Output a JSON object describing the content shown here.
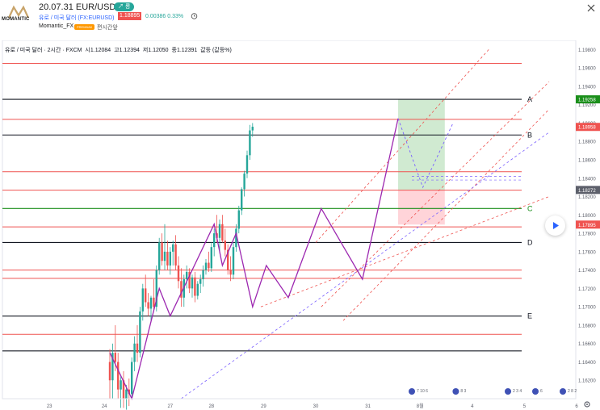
{
  "header": {
    "logo_text": "MOMANTIC",
    "post_title": "20.07.31 EUR/USD",
    "post_badge": "↗ 롱",
    "symbol_name": "유로 / 미국 달러 (FX:EURUSD)",
    "last_price": "1.18895",
    "price_change": "0.00386",
    "price_change_pct": "0.33%",
    "author": "Momantic_FX",
    "author_badge": "PREMIUM",
    "publish_label": "편시간앞"
  },
  "legend": {
    "symbol": "유로 / 미국 달러 · 2시간 · FXCM",
    "open": "시1.12084",
    "high": "고1.12394",
    "low": "저1.12050",
    "close": "종1.12391",
    "change": "값등 (값등%)"
  },
  "colors": {
    "up": "#26a69a",
    "down": "#ef5350",
    "pattern": "#9c27b0",
    "projection": "#7b61ff",
    "resistance": "#ef5350",
    "level": "#131722",
    "long_target_zone": "#c8e6c9",
    "stop_zone": "#ffcdd2",
    "label_green": "#1b8f1b"
  },
  "icons": {
    "alert": "alert-clock-icon",
    "close": "close-icon",
    "play": "play-icon",
    "settings": "gear-icon"
  },
  "chart_data": {
    "type": "candlestick",
    "timeframe": "2h",
    "ylim": [
      1.16,
      1.199
    ],
    "y_ticks": [
      "1.19800",
      "1.19600",
      "1.19400",
      "1.19200",
      "1.19000",
      "1.18800",
      "1.18600",
      "1.18400",
      "1.18200",
      "1.18000",
      "1.17800",
      "1.17600",
      "1.17400",
      "1.17200",
      "1.17000",
      "1.16800",
      "1.16600",
      "1.16400",
      "1.16200"
    ],
    "x_ticks": [
      {
        "label": "23",
        "slot": 18
      },
      {
        "label": "24",
        "slot": 38
      },
      {
        "label": "27",
        "slot": 62
      },
      {
        "label": "28",
        "slot": 77
      },
      {
        "label": "29",
        "slot": 96
      },
      {
        "label": "30",
        "slot": 115
      },
      {
        "label": "31",
        "slot": 134
      },
      {
        "label": "8월",
        "slot": 153
      },
      {
        "label": "4",
        "slot": 172
      },
      {
        "label": "5",
        "slot": 191
      },
      {
        "label": "6",
        "slot": 210
      }
    ],
    "price_tags": [
      {
        "value": "1.19258",
        "price": 1.19258,
        "color": "#1b8f1b"
      },
      {
        "value": "1.18958",
        "price": 1.18958,
        "color": "#ef5350"
      },
      {
        "value": "1.18272",
        "price": 1.18272,
        "color": "#5d606b"
      },
      {
        "value": "1.17895",
        "price": 1.17895,
        "color": "#ef5350"
      }
    ],
    "levels": [
      {
        "label": "A",
        "price": 1.19258,
        "color": "#131722"
      },
      {
        "label": "B",
        "price": 1.1887,
        "color": "#131722"
      },
      {
        "label": "C",
        "price": 1.1807,
        "color": "#1b8f1b"
      },
      {
        "label": "D",
        "price": 1.177,
        "color": "#131722"
      },
      {
        "label": "E",
        "price": 1.169,
        "color": "#131722"
      },
      {
        "label": "",
        "price": 1.1652,
        "color": "#131722"
      }
    ],
    "resistance_lines": [
      1.1965,
      1.1904,
      1.1847,
      1.1827,
      1.1787,
      1.174,
      1.1731,
      1.167
    ],
    "candles": [
      {
        "o": 1.164,
        "h": 1.1654,
        "l": 1.16,
        "c": 1.162
      },
      {
        "o": 1.162,
        "h": 1.166,
        "l": 1.16,
        "c": 1.165
      },
      {
        "o": 1.165,
        "h": 1.168,
        "l": 1.163,
        "c": 1.164
      },
      {
        "o": 1.164,
        "h": 1.165,
        "l": 1.16,
        "c": 1.161
      },
      {
        "o": 1.161,
        "h": 1.1625,
        "l": 1.159,
        "c": 1.162
      },
      {
        "o": 1.162,
        "h": 1.163,
        "l": 1.159,
        "c": 1.16
      },
      {
        "o": 1.16,
        "h": 1.1615,
        "l": 1.1588,
        "c": 1.161
      },
      {
        "o": 1.161,
        "h": 1.1622,
        "l": 1.1592,
        "c": 1.1605
      },
      {
        "o": 1.1605,
        "h": 1.1645,
        "l": 1.16,
        "c": 1.164
      },
      {
        "o": 1.164,
        "h": 1.1668,
        "l": 1.163,
        "c": 1.166
      },
      {
        "o": 1.166,
        "h": 1.168,
        "l": 1.164,
        "c": 1.165
      },
      {
        "o": 1.165,
        "h": 1.17,
        "l": 1.1645,
        "c": 1.1695
      },
      {
        "o": 1.1695,
        "h": 1.1725,
        "l": 1.1685,
        "c": 1.172
      },
      {
        "o": 1.172,
        "h": 1.1735,
        "l": 1.17,
        "c": 1.1705
      },
      {
        "o": 1.1705,
        "h": 1.1715,
        "l": 1.169,
        "c": 1.1698
      },
      {
        "o": 1.1698,
        "h": 1.1712,
        "l": 1.1685,
        "c": 1.171
      },
      {
        "o": 1.171,
        "h": 1.173,
        "l": 1.1695,
        "c": 1.17
      },
      {
        "o": 1.17,
        "h": 1.1745,
        "l": 1.1695,
        "c": 1.174
      },
      {
        "o": 1.174,
        "h": 1.1775,
        "l": 1.1735,
        "c": 1.177
      },
      {
        "o": 1.177,
        "h": 1.178,
        "l": 1.1745,
        "c": 1.175
      },
      {
        "o": 1.175,
        "h": 1.179,
        "l": 1.174,
        "c": 1.176
      },
      {
        "o": 1.176,
        "h": 1.1772,
        "l": 1.174,
        "c": 1.1745
      },
      {
        "o": 1.1745,
        "h": 1.1765,
        "l": 1.1735,
        "c": 1.176
      },
      {
        "o": 1.176,
        "h": 1.1772,
        "l": 1.1745,
        "c": 1.1768
      },
      {
        "o": 1.1768,
        "h": 1.1778,
        "l": 1.174,
        "c": 1.1745
      },
      {
        "o": 1.1745,
        "h": 1.1755,
        "l": 1.172,
        "c": 1.1728
      },
      {
        "o": 1.1728,
        "h": 1.1742,
        "l": 1.17,
        "c": 1.171
      },
      {
        "o": 1.171,
        "h": 1.1735,
        "l": 1.17,
        "c": 1.173
      },
      {
        "o": 1.173,
        "h": 1.1745,
        "l": 1.172,
        "c": 1.1738
      },
      {
        "o": 1.1738,
        "h": 1.1742,
        "l": 1.1715,
        "c": 1.172
      },
      {
        "o": 1.172,
        "h": 1.1735,
        "l": 1.171,
        "c": 1.1732
      },
      {
        "o": 1.1732,
        "h": 1.1738,
        "l": 1.1705,
        "c": 1.1712
      },
      {
        "o": 1.1712,
        "h": 1.1728,
        "l": 1.1708,
        "c": 1.1725
      },
      {
        "o": 1.1725,
        "h": 1.1735,
        "l": 1.1715,
        "c": 1.173
      },
      {
        "o": 1.173,
        "h": 1.1745,
        "l": 1.1722,
        "c": 1.174
      },
      {
        "o": 1.174,
        "h": 1.1752,
        "l": 1.1735,
        "c": 1.1748
      },
      {
        "o": 1.1748,
        "h": 1.176,
        "l": 1.1738,
        "c": 1.1742
      },
      {
        "o": 1.1742,
        "h": 1.177,
        "l": 1.1738,
        "c": 1.1765
      },
      {
        "o": 1.1765,
        "h": 1.1785,
        "l": 1.1755,
        "c": 1.178
      },
      {
        "o": 1.178,
        "h": 1.18,
        "l": 1.177,
        "c": 1.1775
      },
      {
        "o": 1.1775,
        "h": 1.1795,
        "l": 1.176,
        "c": 1.179
      },
      {
        "o": 1.179,
        "h": 1.18,
        "l": 1.177,
        "c": 1.1772
      },
      {
        "o": 1.1772,
        "h": 1.1785,
        "l": 1.1755,
        "c": 1.1762
      },
      {
        "o": 1.1762,
        "h": 1.1768,
        "l": 1.1735,
        "c": 1.174
      },
      {
        "o": 1.174,
        "h": 1.1755,
        "l": 1.1728,
        "c": 1.1735
      },
      {
        "o": 1.1735,
        "h": 1.177,
        "l": 1.173,
        "c": 1.1765
      },
      {
        "o": 1.1765,
        "h": 1.179,
        "l": 1.176,
        "c": 1.1785
      },
      {
        "o": 1.1785,
        "h": 1.181,
        "l": 1.178,
        "c": 1.1805
      },
      {
        "o": 1.1805,
        "h": 1.183,
        "l": 1.18,
        "c": 1.1828
      },
      {
        "o": 1.1828,
        "h": 1.1848,
        "l": 1.182,
        "c": 1.1845
      },
      {
        "o": 1.1845,
        "h": 1.187,
        "l": 1.184,
        "c": 1.1865
      },
      {
        "o": 1.1865,
        "h": 1.1898,
        "l": 1.186,
        "c": 1.1892
      },
      {
        "o": 1.1892,
        "h": 1.19,
        "l": 1.1885,
        "c": 1.1896
      }
    ],
    "first_candle_slot": 40,
    "harmonic_pattern": [
      [
        40,
        1.165
      ],
      [
        48,
        1.16
      ],
      [
        58,
        1.172
      ],
      [
        62,
        1.169
      ],
      [
        78,
        1.179
      ],
      [
        81,
        1.1745
      ],
      [
        86,
        1.178
      ],
      [
        92,
        1.17
      ],
      [
        97,
        1.1745
      ],
      [
        105,
        1.171
      ],
      [
        117,
        1.1807
      ],
      [
        132,
        1.173
      ],
      [
        145,
        1.1905
      ]
    ],
    "projection_path": [
      [
        145,
        1.1905
      ],
      [
        154,
        1.183
      ],
      [
        165,
        1.19
      ]
    ],
    "channel_lines": [
      {
        "from": [
          115,
          1.177
        ],
        "to": [
          178,
          1.198
        ],
        "color": "#ef5350"
      },
      {
        "from": [
          117,
          1.17
        ],
        "to": [
          200,
          1.1945
        ],
        "color": "#ef5350"
      },
      {
        "from": [
          125,
          1.1685
        ],
        "to": [
          200,
          1.1915
        ],
        "color": "#ef5350"
      },
      {
        "from": [
          95,
          1.17
        ],
        "to": [
          200,
          1.182
        ],
        "color": "#ef5350"
      },
      {
        "from": [
          66,
          1.16
        ],
        "to": [
          200,
          1.189
        ],
        "color": "#7b61ff"
      }
    ],
    "horizontal_dashed": [
      1.1842,
      1.1838
    ],
    "long_position": {
      "start_slot": 145,
      "end_slot": 162,
      "entry": 1.18272,
      "target": 1.19258,
      "stop": 1.17895
    },
    "event_markers": [
      {
        "slot": 150,
        "text": "7 10 6"
      },
      {
        "slot": 166,
        "text": "8 3"
      },
      {
        "slot": 185,
        "text": "2 3 4"
      },
      {
        "slot": 195,
        "text": "6"
      },
      {
        "slot": 205,
        "text": "2 8 2"
      }
    ],
    "grid": false
  }
}
